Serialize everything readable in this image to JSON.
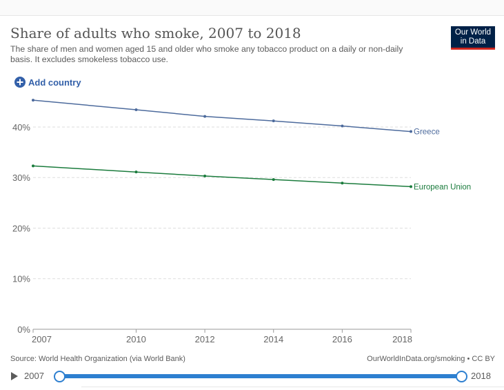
{
  "header": {
    "title": "Share of adults who smoke, 2007 to 2018",
    "subtitle": "The share of men and women aged 15 and older who smoke any tobacco product on a daily or non-daily basis. It excludes smokeless tobacco use.",
    "logo_line1": "Our World",
    "logo_line2": "in Data"
  },
  "controls": {
    "add_country_label": "Add country"
  },
  "footer": {
    "source": "Source: World Health Organization (via World Bank)",
    "license": "OurWorldInData.org/smoking • CC BY"
  },
  "timeline": {
    "start_label": "2007",
    "end_label": "2018",
    "color": "#2d7fd0"
  },
  "chart_data": {
    "type": "line",
    "title": "Share of adults who smoke, 2007 to 2018",
    "xlabel": "",
    "ylabel": "",
    "x": [
      2007,
      2010,
      2012,
      2014,
      2016,
      2018
    ],
    "xlim": [
      2007,
      2018
    ],
    "ylim": [
      0,
      46
    ],
    "y_ticks": [
      0,
      10,
      20,
      30,
      40
    ],
    "y_tick_labels": [
      "0%",
      "10%",
      "20%",
      "30%",
      "40%"
    ],
    "x_tick_labels": [
      "2007",
      "2010",
      "2012",
      "2014",
      "2016",
      "2018"
    ],
    "grid": "horizontal dashed",
    "legend": "inline labels at line ends",
    "series": [
      {
        "name": "Greece",
        "color": "#4c6a9c",
        "values": [
          45.3,
          43.4,
          42.1,
          41.2,
          40.2,
          39.1
        ]
      },
      {
        "name": "European Union",
        "color": "#1a7b3c",
        "values": [
          32.3,
          31.1,
          30.3,
          29.6,
          28.9,
          28.2
        ]
      }
    ]
  }
}
